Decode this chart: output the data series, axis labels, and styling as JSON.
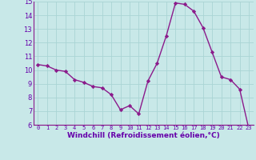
{
  "x": [
    0,
    1,
    2,
    3,
    4,
    5,
    6,
    7,
    8,
    9,
    10,
    11,
    12,
    13,
    14,
    15,
    16,
    17,
    18,
    19,
    20,
    21,
    22,
    23
  ],
  "y": [
    10.4,
    10.3,
    10.0,
    9.9,
    9.3,
    9.1,
    8.8,
    8.7,
    8.2,
    7.1,
    7.4,
    6.8,
    9.2,
    10.5,
    12.5,
    14.9,
    14.8,
    14.3,
    13.1,
    11.3,
    9.5,
    9.3,
    8.6,
    5.7
  ],
  "line_color": "#8b1a8b",
  "marker": "D",
  "marker_size": 2.2,
  "linewidth": 1.0,
  "xlabel": "Windchill (Refroidissement éolien,°C)",
  "xlabel_fontsize": 6.5,
  "ylim": [
    6,
    15
  ],
  "xlim": [
    -0.5,
    23.5
  ],
  "yticks": [
    6,
    7,
    8,
    9,
    10,
    11,
    12,
    13,
    14,
    15
  ],
  "xticks": [
    0,
    1,
    2,
    3,
    4,
    5,
    6,
    7,
    8,
    9,
    10,
    11,
    12,
    13,
    14,
    15,
    16,
    17,
    18,
    19,
    20,
    21,
    22,
    23
  ],
  "xtick_labels": [
    "0",
    "1",
    "2",
    "3",
    "4",
    "5",
    "6",
    "7",
    "8",
    "9",
    "10",
    "11",
    "12",
    "13",
    "14",
    "15",
    "16",
    "17",
    "18",
    "19",
    "20",
    "21",
    "22",
    "23"
  ],
  "xtick_fontsize": 5.0,
  "ytick_fontsize": 6.0,
  "grid_color": "#aad4d4",
  "bg_color": "#c8e8e8"
}
